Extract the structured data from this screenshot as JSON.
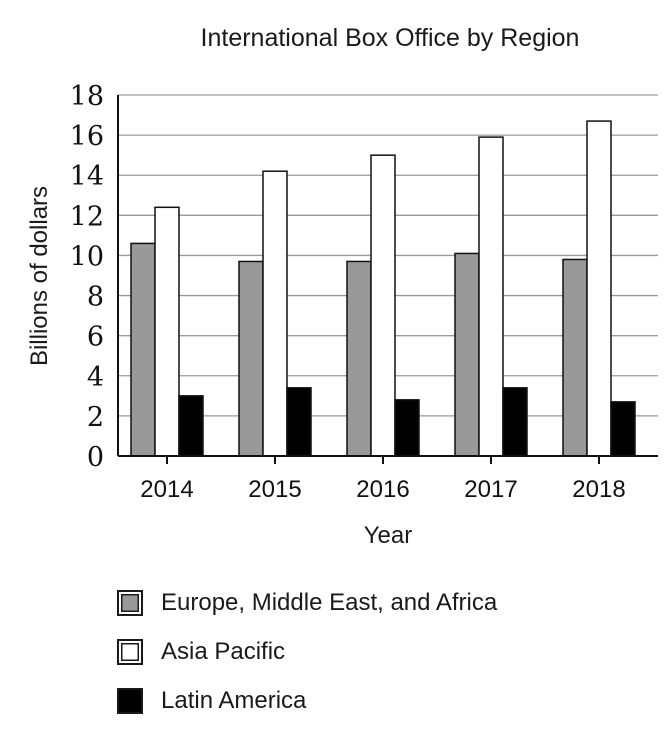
{
  "chart_data": {
    "type": "bar",
    "title": "International Box Office by Region",
    "xlabel": "Year",
    "ylabel": "Billions of dollars",
    "categories": [
      "2014",
      "2015",
      "2016",
      "2017",
      "2018"
    ],
    "ylim": [
      0,
      18
    ],
    "yticks": [
      "0",
      "2",
      "4",
      "6",
      "8",
      "10",
      "12",
      "14",
      "16",
      "18"
    ],
    "grid": true,
    "legend_position": "bottom",
    "series": [
      {
        "name": "Europe, Middle East, and Africa",
        "color": "#999999",
        "values": [
          10.6,
          9.7,
          9.7,
          10.1,
          9.8
        ]
      },
      {
        "name": "Asia Pacific",
        "color": "#ffffff",
        "values": [
          12.4,
          14.2,
          15.0,
          15.9,
          16.7
        ]
      },
      {
        "name": "Latin America",
        "color": "#000000",
        "values": [
          3.0,
          3.4,
          2.8,
          3.4,
          2.7
        ]
      }
    ]
  }
}
